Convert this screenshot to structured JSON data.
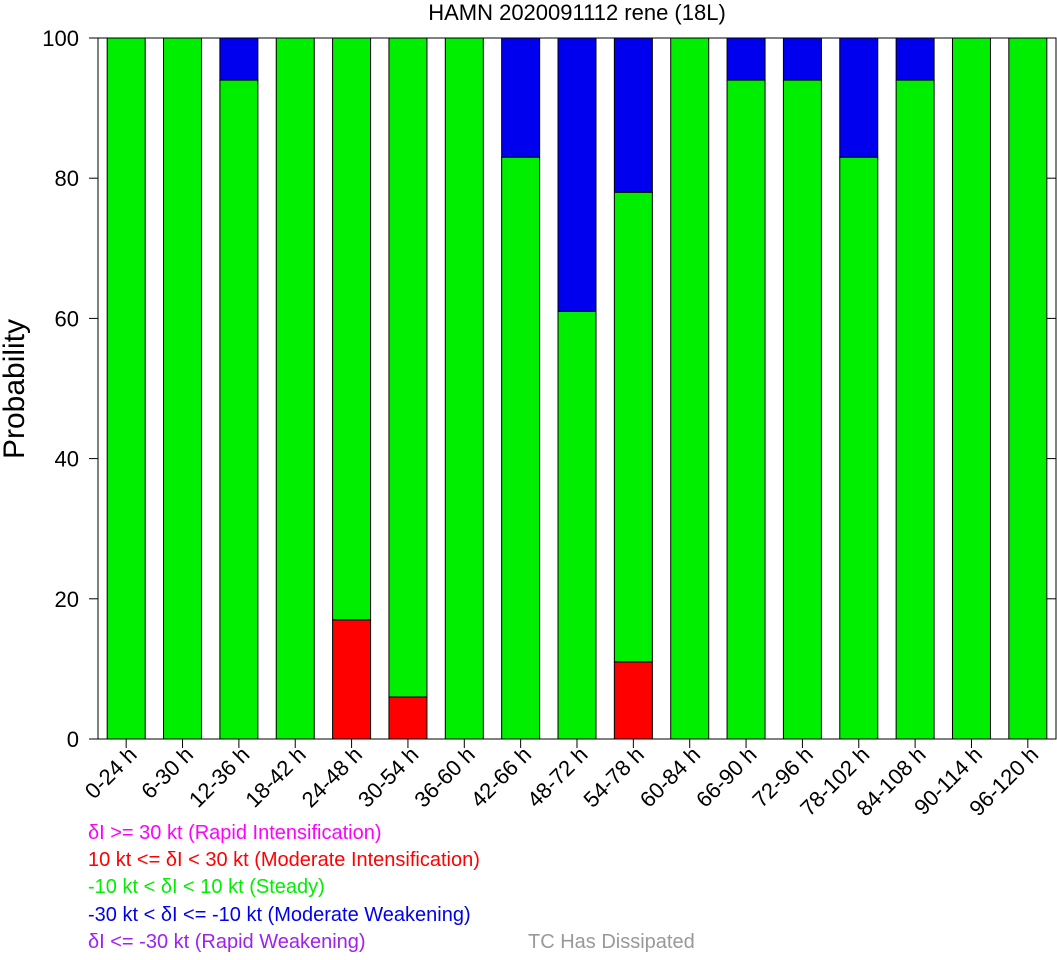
{
  "chart_data": {
    "type": "bar",
    "stacked": true,
    "title": "HAMN 2020091112 rene (18L)",
    "xlabel": "",
    "ylabel": "Probability",
    "ylim": [
      0,
      100
    ],
    "yticks": [
      "0",
      "20",
      "40",
      "60",
      "80",
      "100"
    ],
    "categories": [
      "0-24 h",
      "6-30 h",
      "12-36 h",
      "18-42 h",
      "24-48 h",
      "30-54 h",
      "36-60 h",
      "42-66 h",
      "48-72 h",
      "54-78 h",
      "60-84 h",
      "66-90 h",
      "72-96 h",
      "78-102 h",
      "84-108 h",
      "90-114 h",
      "96-120 h"
    ],
    "series": [
      {
        "name": "Rapid Intensification",
        "color": "#ff00ff",
        "values": [
          0,
          0,
          0,
          0,
          0,
          0,
          0,
          0,
          0,
          0,
          0,
          0,
          0,
          0,
          0,
          0,
          0
        ]
      },
      {
        "name": "Moderate Intensification",
        "color": "#ff0000",
        "values": [
          0,
          0,
          0,
          0,
          17,
          6,
          0,
          0,
          0,
          11,
          0,
          0,
          0,
          0,
          0,
          0,
          0
        ]
      },
      {
        "name": "Steady",
        "color": "#00ee00",
        "values": [
          100,
          100,
          94,
          100,
          83,
          94,
          100,
          83,
          61,
          67,
          100,
          94,
          94,
          83,
          94,
          100,
          100
        ]
      },
      {
        "name": "Moderate Weakening",
        "color": "#0000ee",
        "values": [
          0,
          0,
          6,
          0,
          0,
          0,
          0,
          17,
          39,
          22,
          0,
          6,
          6,
          17,
          6,
          0,
          0
        ]
      },
      {
        "name": "Rapid Weakening",
        "color": "#a020f0",
        "values": [
          0,
          0,
          0,
          0,
          0,
          0,
          0,
          0,
          0,
          0,
          0,
          0,
          0,
          0,
          0,
          0,
          0
        ]
      }
    ]
  },
  "legend": {
    "ri": {
      "text": "δI >= 30 kt (Rapid Intensification)",
      "color": "#ff00ff"
    },
    "mi": {
      "text": "10 kt <= δI < 30 kt (Moderate Intensification)",
      "color": "#ff0000"
    },
    "st": {
      "text": "-10 kt < δI < 10 kt (Steady)",
      "color": "#00ee00"
    },
    "mw": {
      "text": "-30 kt < δI <= -10 kt (Moderate Weakening)",
      "color": "#0000ee"
    },
    "rw": {
      "text": "δI <= -30 kt (Rapid Weakening)",
      "color": "#a020f0"
    },
    "dissipated": {
      "text": "TC Has Dissipated",
      "color": "#999999"
    }
  }
}
